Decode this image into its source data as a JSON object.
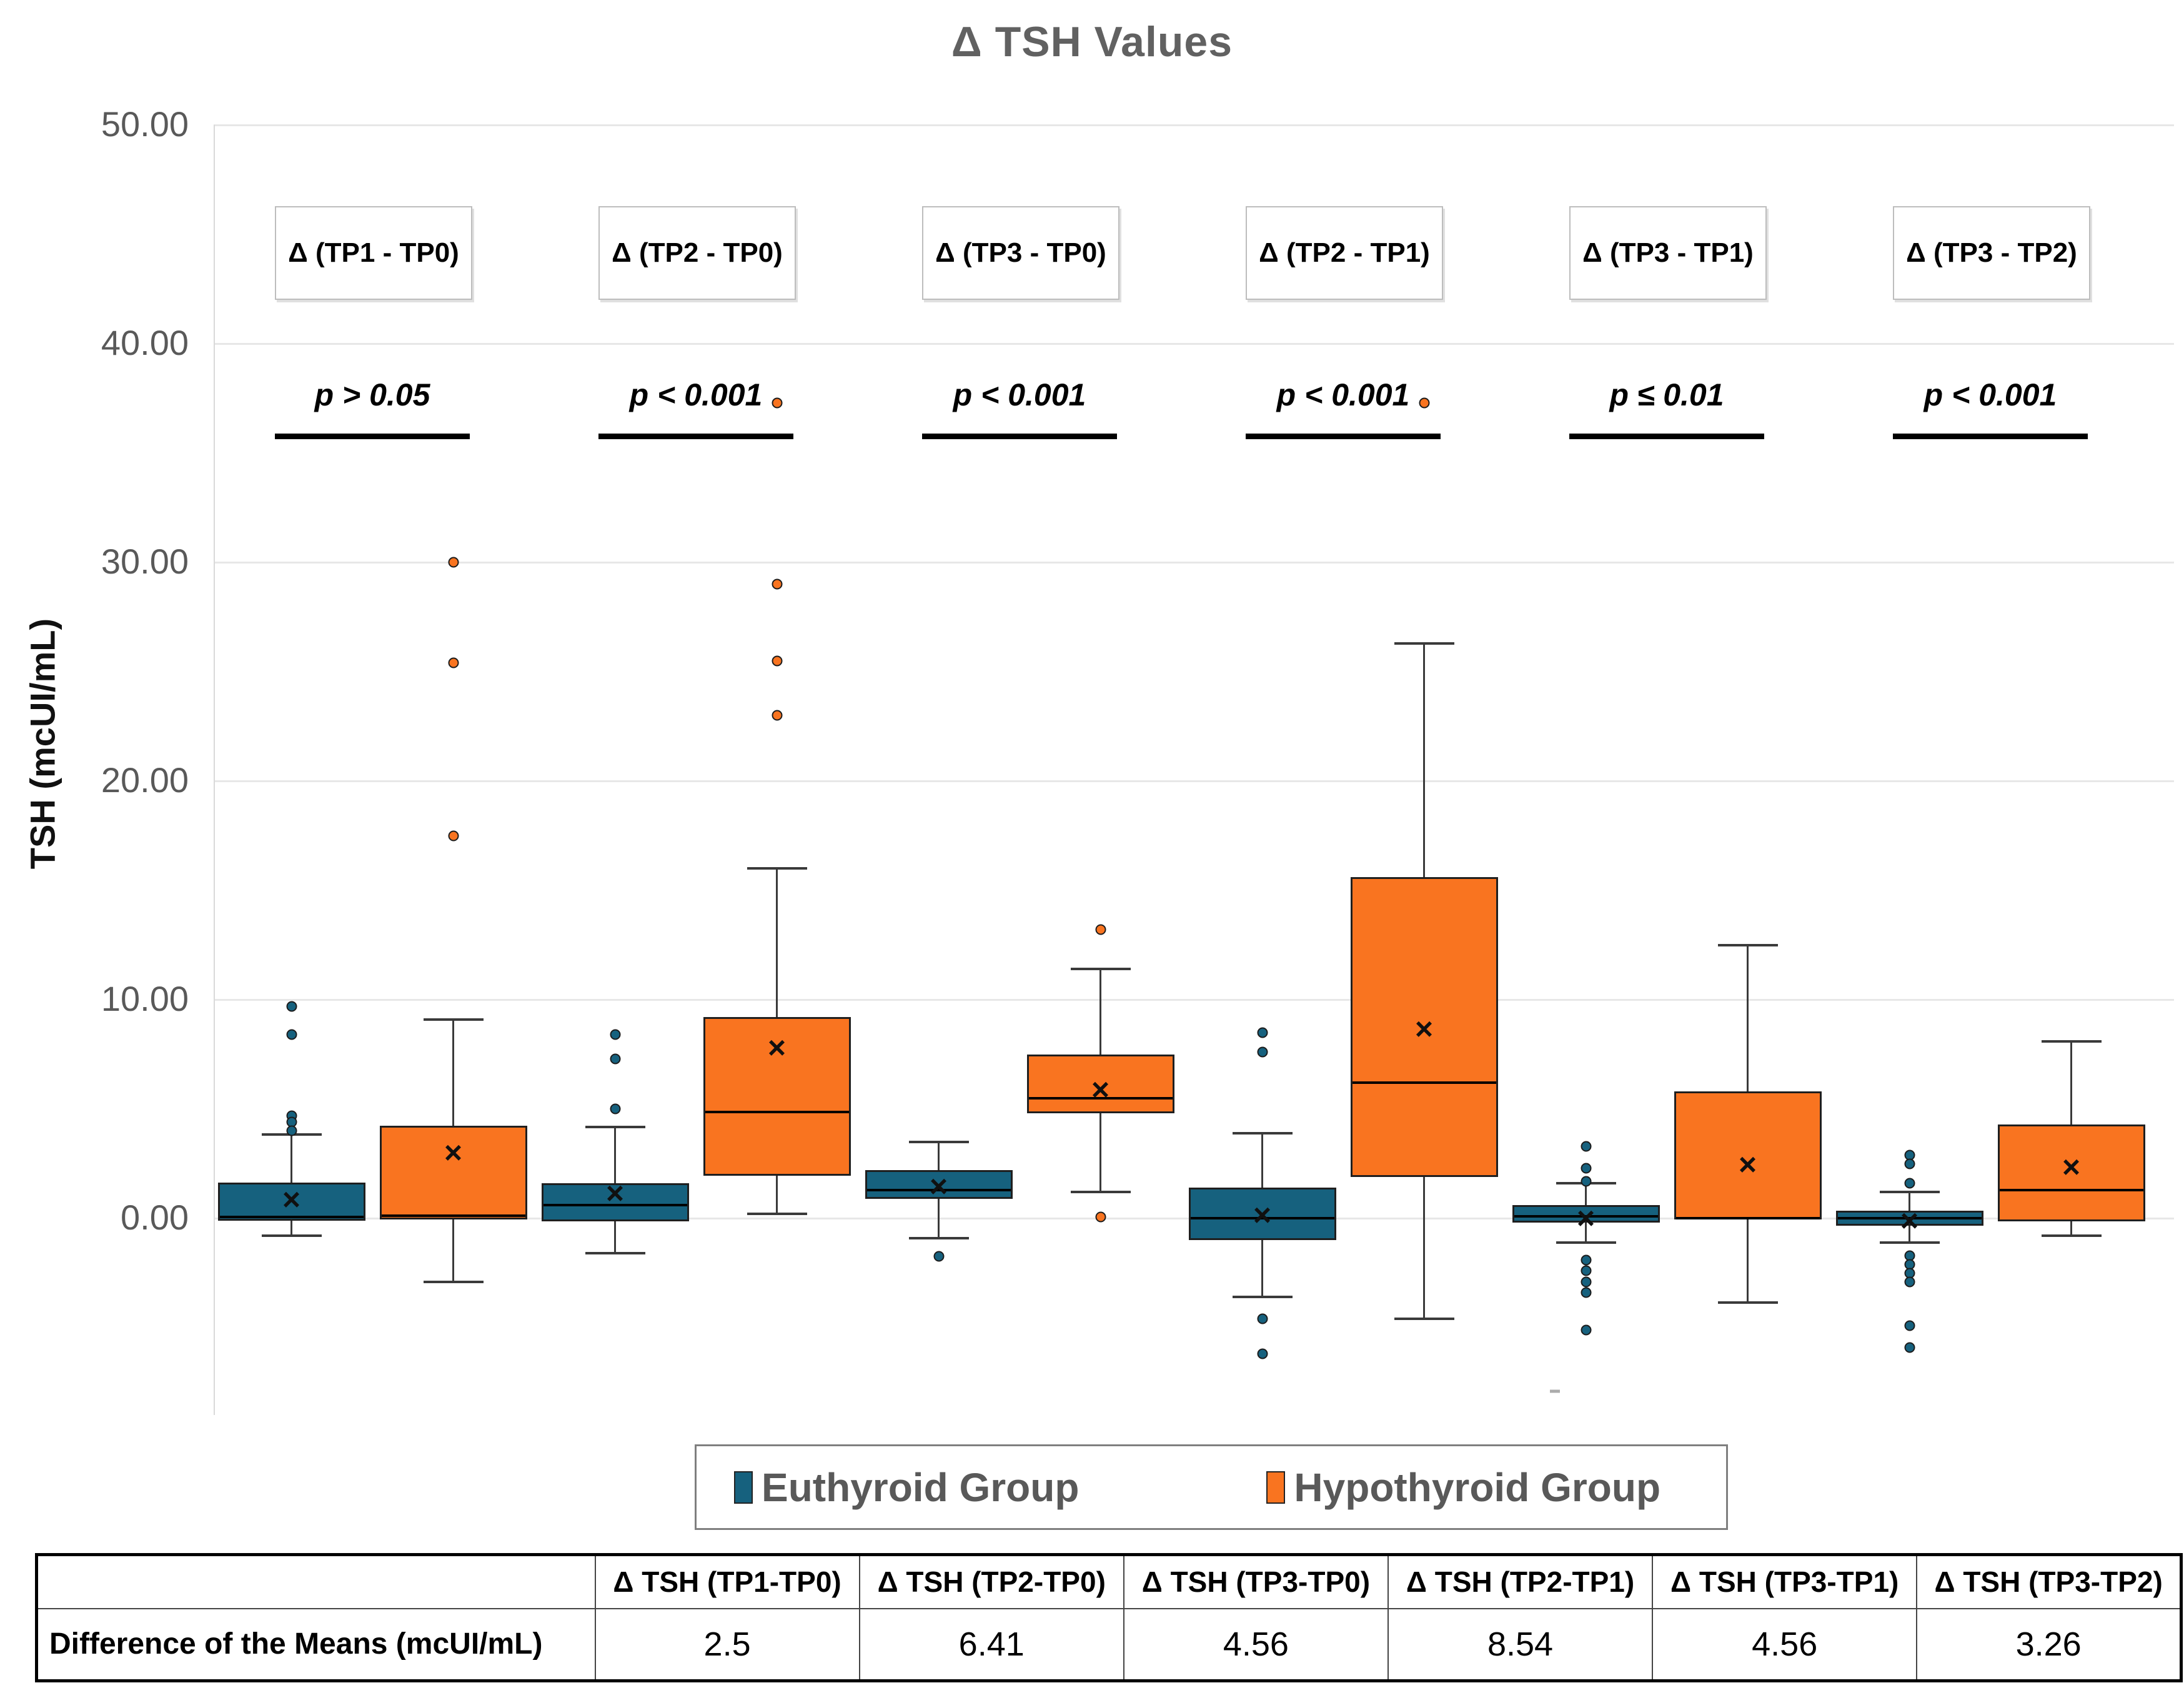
{
  "title": "Δ TSH Values",
  "y_axis": {
    "title": "TSH  (mcUI/mL)",
    "ticks": [
      {
        "label": "50.00",
        "value": 50
      },
      {
        "label": "40.00",
        "value": 40
      },
      {
        "label": "30.00",
        "value": 30
      },
      {
        "label": "20.00",
        "value": 20
      },
      {
        "label": "10.00",
        "value": 10
      },
      {
        "label": "0.00",
        "value": 0
      }
    ]
  },
  "legend": {
    "items": [
      {
        "label": "Euthyroid Group",
        "color": "#16617E"
      },
      {
        "label": "Hypothyroid Group",
        "color": "#F97420"
      }
    ]
  },
  "chart_data": {
    "type": "box",
    "title": "Δ TSH Values",
    "ylabel": "TSH (mcUI/mL)",
    "ylim": [
      -9,
      50
    ],
    "grid": "horizontal gridlines every 10 units",
    "legend_position": "bottom",
    "categories": [
      "Δ (TP1 - TP0)",
      "Δ (TP2 - TP0)",
      "Δ (TP3 - TP0)",
      "Δ (TP2 - TP1)",
      "Δ (TP3 - TP1)",
      "Δ (TP3 - TP2)"
    ],
    "p_values": [
      "p > 0.05",
      "p < 0.001",
      "p < 0.001",
      "p < 0.001",
      "p ≤ 0.01",
      "p < 0.001"
    ],
    "series": [
      {
        "name": "Euthyroid Group",
        "color": "#16617E",
        "boxes": [
          {
            "q1": -0.12,
            "median": 0.05,
            "q3": 1.63,
            "mean": 0.85,
            "whisker_low": -0.8,
            "whisker_high": 3.84,
            "outliers_high": [
              9.7,
              8.4,
              4.7,
              4.4,
              4.0
            ],
            "outliers_low": []
          },
          {
            "q1": -0.15,
            "median": 0.6,
            "q3": 1.6,
            "mean": 1.15,
            "whisker_low": -1.6,
            "whisker_high": 4.16,
            "outliers_high": [
              8.4,
              7.3,
              5.0
            ],
            "outliers_low": []
          },
          {
            "q1": 0.9,
            "median": 1.3,
            "q3": 2.2,
            "mean": 1.45,
            "whisker_low": -0.9,
            "whisker_high": 3.5,
            "outliers_high": [],
            "outliers_low": [
              -1.75
            ]
          },
          {
            "q1": -1.0,
            "median": 0.0,
            "q3": 1.4,
            "mean": 0.15,
            "whisker_low": -3.6,
            "whisker_high": 3.9,
            "outliers_high": [
              8.5,
              7.6
            ],
            "outliers_low": [
              -4.6,
              -6.2
            ]
          },
          {
            "q1": -0.2,
            "median": 0.1,
            "q3": 0.6,
            "mean": 0.0,
            "whisker_low": -1.1,
            "whisker_high": 1.6,
            "outliers_high": [
              3.3,
              2.3,
              1.7
            ],
            "outliers_low": [
              -1.9,
              -2.4,
              -2.9,
              -3.4,
              -5.1
            ]
          },
          {
            "q1": -0.35,
            "median": 0.0,
            "q3": 0.35,
            "mean": -0.1,
            "whisker_low": -1.1,
            "whisker_high": 1.2,
            "outliers_high": [
              2.9,
              2.5,
              1.6
            ],
            "outliers_low": [
              -1.7,
              -2.1,
              -2.5,
              -2.9,
              -4.9,
              -5.9
            ]
          }
        ]
      },
      {
        "name": "Hypothyroid Group",
        "color": "#F97420",
        "boxes": [
          {
            "q1": -0.05,
            "median": 0.12,
            "q3": 4.22,
            "mean": 3.0,
            "whisker_low": -2.9,
            "whisker_high": 9.1,
            "outliers_high": [
              30.0,
              25.4,
              17.5
            ],
            "outliers_low": []
          },
          {
            "q1": 1.95,
            "median": 4.85,
            "q3": 9.2,
            "mean": 7.8,
            "whisker_low": 0.2,
            "whisker_high": 16.0,
            "outliers_high": [
              37.3,
              29.0,
              25.5,
              23.0
            ],
            "outliers_low": []
          },
          {
            "q1": 4.8,
            "median": 5.5,
            "q3": 7.5,
            "mean": 5.9,
            "whisker_low": 1.2,
            "whisker_high": 11.4,
            "outliers_high": [
              13.2
            ],
            "outliers_low": [
              0.05
            ]
          },
          {
            "q1": 1.9,
            "median": 6.2,
            "q3": 15.6,
            "mean": 8.65,
            "whisker_low": -4.6,
            "whisker_high": 26.3,
            "outliers_high": [
              37.3
            ],
            "outliers_low": []
          },
          {
            "q1": -0.05,
            "median": 0.0,
            "q3": 5.8,
            "mean": 2.45,
            "whisker_low": -3.85,
            "whisker_high": 12.5,
            "outliers_high": [],
            "outliers_low": []
          },
          {
            "q1": -0.15,
            "median": 1.3,
            "q3": 4.3,
            "mean": 2.35,
            "whisker_low": -0.8,
            "whisker_high": 8.1,
            "outliers_high": [],
            "outliers_low": []
          }
        ]
      }
    ],
    "stray_dash": {
      "series": "Euthyroid Group",
      "group_index": 4,
      "value": -7.9
    }
  },
  "table": {
    "row_label": "Difference of the Means (mcUI/mL)",
    "headers": [
      "Δ TSH (TP1-TP0)",
      "Δ TSH (TP2-TP0)",
      "Δ TSH (TP3-TP0)",
      "Δ TSH (TP2-TP1)",
      "Δ TSH (TP3-TP1)",
      "Δ TSH (TP3-TP2)"
    ],
    "values": [
      "2.5",
      "6.41",
      "4.56",
      "8.54",
      "4.56",
      "3.26"
    ]
  },
  "colors": {
    "euthyroid": "#16617E",
    "hypothyroid": "#F97420",
    "box_border": "#1F1F1F",
    "gridline": "#E7E7E7",
    "axis_text": "#595959",
    "title_text": "#616161",
    "legend_border": "#7F7F7F",
    "annotation_text": "#000000"
  }
}
